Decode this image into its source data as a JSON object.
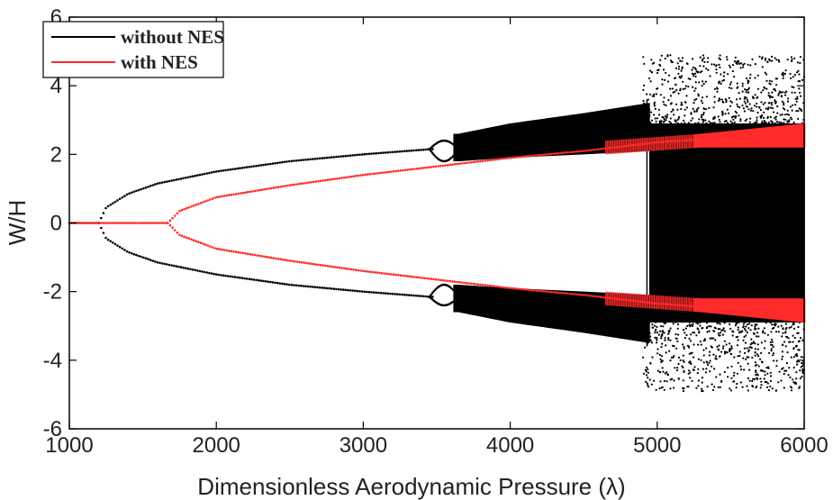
{
  "chart_data": {
    "type": "scatter",
    "title": "",
    "xlabel": "Dimensionless Aerodynamic Pressure (λ)",
    "ylabel": "W/H",
    "xlim": [
      1000,
      6000
    ],
    "ylim": [
      -6,
      6
    ],
    "xticks": [
      "1000",
      "2000",
      "3000",
      "4000",
      "5000",
      "6000"
    ],
    "yticks": [
      "6",
      "4",
      "2",
      "0",
      "-2",
      "-4",
      "-6"
    ],
    "grid": false,
    "legend_position": "top-left",
    "colors": {
      "without": "#000000",
      "with": "#ff2a2a"
    },
    "series": [
      {
        "name": "without NES",
        "description_points": {
          "trivial_branch": {
            "x": [
              1000,
              1200
            ],
            "y": [
              0,
              0
            ]
          },
          "bifurcation_x": 1200,
          "branch_upper": [
            [
              1200,
              0
            ],
            [
              1250,
              0.45
            ],
            [
              1400,
              0.85
            ],
            [
              1600,
              1.15
            ],
            [
              2000,
              1.5
            ],
            [
              2500,
              1.8
            ],
            [
              3000,
              2.0
            ],
            [
              3450,
              2.15
            ]
          ],
          "chaotic_band_upper": [
            [
              3650,
              1.8,
              2.6
            ],
            [
              4000,
              1.9,
              2.9
            ],
            [
              4500,
              2.0,
              3.2
            ],
            [
              4950,
              2.1,
              3.5
            ]
          ],
          "chaotic_full": [
            [
              4950,
              -4.8,
              5.0
            ],
            [
              6000,
              -4.9,
              4.9
            ]
          ]
        }
      },
      {
        "name": "with NES",
        "description_points": {
          "trivial_branch": {
            "x": [
              1000,
              1670
            ],
            "y": [
              0,
              0
            ]
          },
          "bifurcation_x": 1670,
          "branch_upper": [
            [
              1670,
              0
            ],
            [
              1750,
              0.35
            ],
            [
              2000,
              0.75
            ],
            [
              2500,
              1.1
            ],
            [
              3000,
              1.4
            ],
            [
              3500,
              1.65
            ],
            [
              4000,
              1.9
            ],
            [
              4500,
              2.1
            ],
            [
              5000,
              2.35
            ],
            [
              5500,
              2.5
            ],
            [
              6000,
              2.6
            ]
          ],
          "band_upper": [
            [
              4650,
              2.0,
              2.4
            ],
            [
              5300,
              2.2,
              2.6
            ],
            [
              6000,
              2.2,
              2.9
            ]
          ]
        }
      }
    ]
  }
}
